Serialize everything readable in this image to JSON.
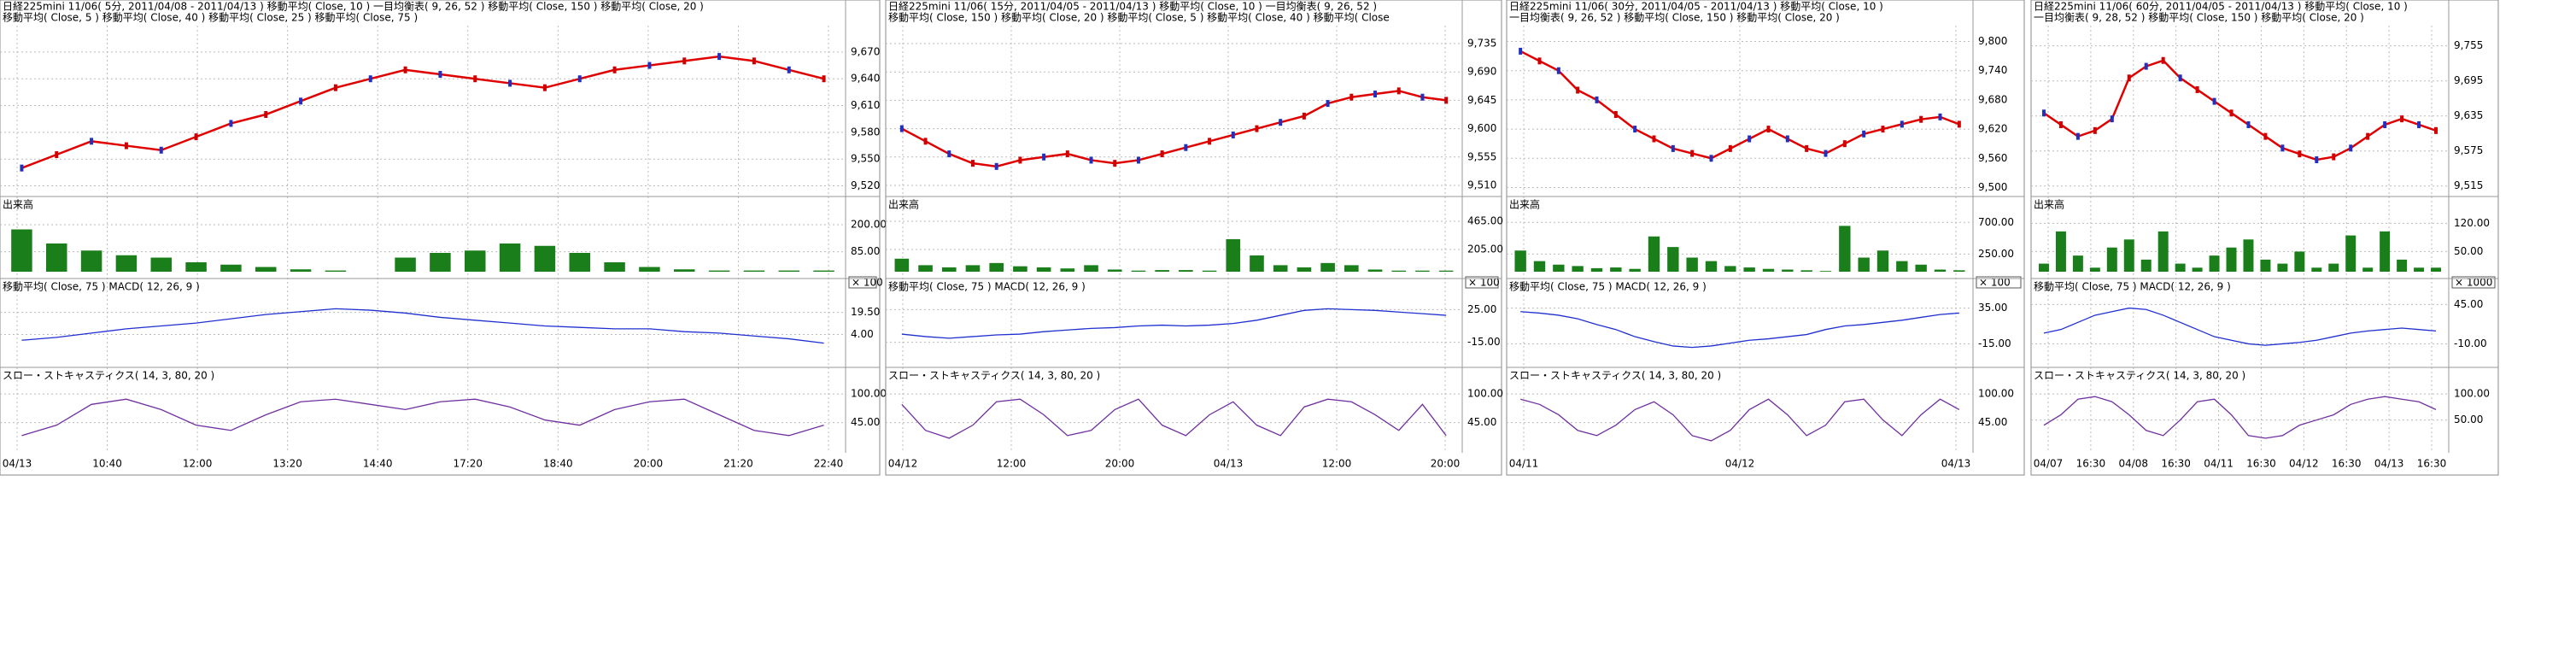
{
  "panels": [
    {
      "header": [
        "日経225mini 11/06( 5分, 2011/04/08 - 2011/04/13 )   移動平均( Close, 10 )   一目均衡表( 9, 26, 52 )   移動平均( Close, 150 )   移動平均( Close, 20 )",
        "移動平均( Close, 5 )   移動平均( Close, 40 )   移動平均( Close, 25 )   移動平均( Close, 75 )"
      ],
      "price": {
        "ylim": [
          9510,
          9690
        ],
        "yticks": [
          {
            "value": 9670,
            "label": "9,670"
          },
          {
            "value": 9640,
            "label": "9,640"
          },
          {
            "value": 9610,
            "label": "9,610"
          },
          {
            "value": 9580,
            "label": "9,580"
          },
          {
            "value": 9550,
            "label": "9,550"
          },
          {
            "value": 9520,
            "label": "9,520"
          }
        ],
        "values": [
          9540,
          9555,
          9570,
          9565,
          9560,
          9575,
          9590,
          9600,
          9615,
          9630,
          9640,
          9650,
          9645,
          9640,
          9635,
          9630,
          9640,
          9650,
          9655,
          9660,
          9665,
          9660,
          9650,
          9640
        ]
      },
      "volume": {
        "label": "出来高",
        "unit": "× 100",
        "ylim": [
          0,
          240
        ],
        "yticks": [
          {
            "value": 200,
            "label": "200.00"
          },
          {
            "value": 85,
            "label": "85.00"
          }
        ],
        "values": [
          180,
          120,
          90,
          70,
          60,
          40,
          30,
          20,
          10,
          5,
          0,
          60,
          80,
          90,
          120,
          110,
          80,
          40,
          20,
          10,
          5,
          5,
          5,
          5
        ]
      },
      "macd": {
        "header": "移動平均( Close, 75 )   MACD( 12, 26, 9 )",
        "ylim": [
          -10,
          30
        ],
        "yticks": [
          {
            "value": 19.5,
            "label": "19.50"
          },
          {
            "value": 4,
            "label": "4.00"
          }
        ],
        "values": [
          0,
          2,
          5,
          8,
          10,
          12,
          15,
          18,
          20,
          22,
          21,
          19,
          16,
          14,
          12,
          10,
          9,
          8,
          8,
          6,
          5,
          3,
          1,
          -2
        ]
      },
      "stoch": {
        "header": "スロー・ストキャスティクス( 14, 3, 80, 20 )",
        "ylim": [
          0,
          115
        ],
        "yticks": [
          {
            "value": 100,
            "label": "100.00"
          },
          {
            "value": 45,
            "label": "45.00"
          }
        ],
        "values": [
          20,
          40,
          80,
          90,
          70,
          40,
          30,
          60,
          85,
          90,
          80,
          70,
          85,
          90,
          75,
          50,
          40,
          70,
          85,
          90,
          60,
          30,
          20,
          40
        ]
      },
      "xlabels": [
        "04/13",
        "10:40",
        "12:00",
        "13:20",
        "14:40",
        "17:20",
        "18:40",
        "20:00",
        "21:20",
        "22:40"
      ]
    },
    {
      "header": [
        "日経225mini 11/06( 15分, 2011/04/05 - 2011/04/13 )   移動平均( Close, 10 )   一目均衡表( 9, 26, 52 )",
        "移動平均( Close, 150 )   移動平均( Close, 20 )   移動平均( Close, 5 )   移動平均( Close, 40 )   移動平均( Close"
      ],
      "price": {
        "ylim": [
          9495,
          9750
        ],
        "yticks": [
          {
            "value": 9735,
            "label": "9,735"
          },
          {
            "value": 9690,
            "label": "9,690"
          },
          {
            "value": 9645,
            "label": "9,645"
          },
          {
            "value": 9600,
            "label": "9,600"
          },
          {
            "value": 9555,
            "label": "9,555"
          },
          {
            "value": 9510,
            "label": "9,510"
          }
        ],
        "values": [
          9600,
          9580,
          9560,
          9545,
          9540,
          9550,
          9555,
          9560,
          9550,
          9545,
          9550,
          9560,
          9570,
          9580,
          9590,
          9600,
          9610,
          9620,
          9640,
          9650,
          9655,
          9660,
          9650,
          9645
        ]
      },
      "volume": {
        "label": "出来高",
        "unit": "× 100",
        "ylim": [
          0,
          520
        ],
        "yticks": [
          {
            "value": 465,
            "label": "465.00"
          },
          {
            "value": 205,
            "label": "205.00"
          }
        ],
        "values": [
          120,
          60,
          40,
          60,
          80,
          50,
          40,
          30,
          60,
          20,
          10,
          15,
          15,
          10,
          300,
          150,
          60,
          40,
          80,
          60,
          20,
          10,
          10,
          10
        ]
      },
      "macd": {
        "header": "移動平均( Close, 75 )   MACD( 12, 26, 9 )",
        "ylim": [
          -30,
          40
        ],
        "yticks": [
          {
            "value": 25,
            "label": "25.00"
          },
          {
            "value": -15,
            "label": "-15.00"
          }
        ],
        "values": [
          -5,
          -8,
          -10,
          -8,
          -6,
          -5,
          -2,
          0,
          2,
          3,
          5,
          6,
          5,
          6,
          8,
          12,
          18,
          24,
          26,
          25,
          24,
          22,
          20,
          18
        ]
      },
      "stoch": {
        "header": "スロー・ストキャスティクス( 14, 3, 80, 20 )",
        "ylim": [
          0,
          115
        ],
        "yticks": [
          {
            "value": 100,
            "label": "100.00"
          },
          {
            "value": 45,
            "label": "45.00"
          }
        ],
        "values": [
          80,
          30,
          15,
          40,
          85,
          90,
          60,
          20,
          30,
          70,
          90,
          40,
          20,
          60,
          85,
          40,
          20,
          75,
          90,
          85,
          60,
          30,
          80,
          20
        ]
      },
      "xlabels": [
        "04/12",
        "12:00",
        "20:00",
        "04/13",
        "12:00",
        "20:00"
      ]
    },
    {
      "header": [
        "日経225mini 11/06( 30分, 2011/04/05 - 2011/04/13 )   移動平均( Close, 10 )",
        "一目均衡表( 9, 26, 52 )   移動平均( Close, 150 )   移動平均( Close, 20 )"
      ],
      "price": {
        "ylim": [
          9485,
          9815
        ],
        "yticks": [
          {
            "value": 9800,
            "label": "9,800"
          },
          {
            "value": 9740,
            "label": "9,740"
          },
          {
            "value": 9680,
            "label": "9,680"
          },
          {
            "value": 9620,
            "label": "9,620"
          },
          {
            "value": 9560,
            "label": "9,560"
          },
          {
            "value": 9500,
            "label": "9,500"
          }
        ],
        "values": [
          9780,
          9760,
          9740,
          9700,
          9680,
          9650,
          9620,
          9600,
          9580,
          9570,
          9560,
          9580,
          9600,
          9620,
          9600,
          9580,
          9570,
          9590,
          9610,
          9620,
          9630,
          9640,
          9645,
          9630
        ]
      },
      "volume": {
        "label": "出来高",
        "unit": "× 100",
        "ylim": [
          0,
          800
        ],
        "yticks": [
          {
            "value": 700,
            "label": "700.00"
          },
          {
            "value": 250,
            "label": "250.00"
          }
        ],
        "values": [
          300,
          150,
          100,
          80,
          50,
          60,
          40,
          500,
          350,
          200,
          150,
          80,
          60,
          40,
          30,
          20,
          10,
          650,
          200,
          300,
          150,
          100,
          30,
          20
        ]
      },
      "macd": {
        "header": "移動平均( Close, 75 )   MACD( 12, 26, 9 )",
        "ylim": [
          -30,
          50
        ],
        "yticks": [
          {
            "value": 35,
            "label": "35.00"
          },
          {
            "value": -15,
            "label": "-15.00"
          }
        ],
        "values": [
          30,
          28,
          25,
          20,
          12,
          5,
          -5,
          -12,
          -18,
          -20,
          -18,
          -14,
          -10,
          -8,
          -5,
          -2,
          5,
          10,
          12,
          15,
          18,
          22,
          26,
          28
        ]
      },
      "stoch": {
        "header": "スロー・ストキャスティクス( 14, 3, 80, 20 )",
        "ylim": [
          0,
          115
        ],
        "yticks": [
          {
            "value": 100,
            "label": "100.00"
          },
          {
            "value": 45,
            "label": "45.00"
          }
        ],
        "values": [
          90,
          80,
          60,
          30,
          20,
          40,
          70,
          85,
          60,
          20,
          10,
          30,
          70,
          90,
          60,
          20,
          40,
          85,
          90,
          50,
          20,
          60,
          90,
          70
        ]
      },
      "xlabels": [
        "04/11",
        "04/12",
        "04/13"
      ]
    },
    {
      "header": [
        "日経225mini 11/06( 60分, 2011/04/05 - 2011/04/13 )   移動平均( Close, 10 )",
        "一目均衡表( 9, 28, 52 )   移動平均( Close, 150 )   移動平均( Close, 20 )"
      ],
      "price": {
        "ylim": [
          9500,
          9775
        ],
        "yticks": [
          {
            "value": 9755,
            "label": "9,755"
          },
          {
            "value": 9695,
            "label": "9,695"
          },
          {
            "value": 9635,
            "label": "9,635"
          },
          {
            "value": 9575,
            "label": "9,575"
          },
          {
            "value": 9515,
            "label": "9,515"
          }
        ],
        "values": [
          9640,
          9620,
          9600,
          9610,
          9630,
          9700,
          9720,
          9730,
          9700,
          9680,
          9660,
          9640,
          9620,
          9600,
          9580,
          9570,
          9560,
          9565,
          9580,
          9600,
          9620,
          9630,
          9620,
          9610
        ]
      },
      "volume": {
        "label": "出来高",
        "unit": "× 1000",
        "ylim": [
          0,
          140
        ],
        "yticks": [
          {
            "value": 120,
            "label": "120.00"
          },
          {
            "value": 50,
            "label": "50.00"
          }
        ],
        "values": [
          20,
          100,
          40,
          10,
          60,
          80,
          30,
          100,
          20,
          10,
          40,
          60,
          80,
          30,
          20,
          50,
          10,
          20,
          90,
          10,
          100,
          30,
          10,
          10
        ]
      },
      "macd": {
        "header": "移動平均( Close, 75 )   MACD( 12, 26, 9 )",
        "ylim": [
          -25,
          55
        ],
        "yticks": [
          {
            "value": 45,
            "label": "45.00"
          },
          {
            "value": -10,
            "label": "-10.00"
          }
        ],
        "values": [
          5,
          10,
          20,
          30,
          35,
          40,
          38,
          30,
          20,
          10,
          0,
          -5,
          -10,
          -12,
          -10,
          -8,
          -5,
          0,
          5,
          8,
          10,
          12,
          10,
          8
        ]
      },
      "stoch": {
        "header": "スロー・ストキャスティクス( 14, 3, 80, 20 )",
        "ylim": [
          0,
          115
        ],
        "yticks": [
          {
            "value": 100,
            "label": "100.00"
          },
          {
            "value": 50,
            "label": "50.00"
          }
        ],
        "values": [
          40,
          60,
          90,
          95,
          85,
          60,
          30,
          20,
          50,
          85,
          90,
          60,
          20,
          15,
          20,
          40,
          50,
          60,
          80,
          90,
          95,
          90,
          85,
          70
        ]
      },
      "xlabels": [
        "04/07",
        "16:30",
        "04/08",
        "16:30",
        "04/11",
        "16:30",
        "04/12",
        "16:30",
        "04/13",
        "16:30"
      ]
    }
  ]
}
